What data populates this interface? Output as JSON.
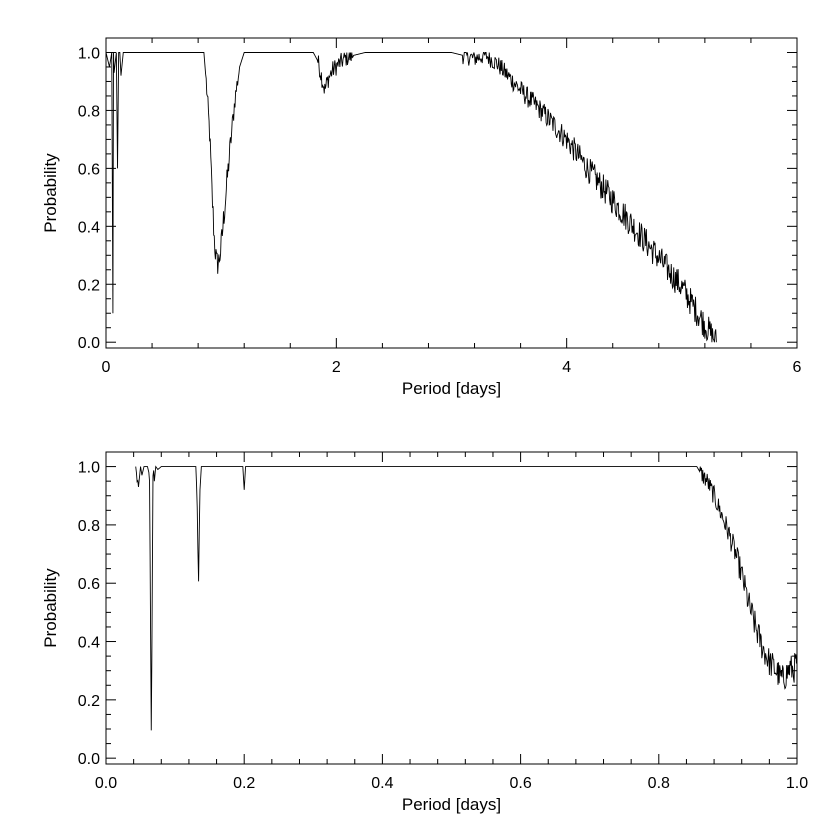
{
  "chart_data": [
    {
      "type": "line",
      "title": "",
      "xlabel": "Period [days]",
      "ylabel": "Probability",
      "xlim": [
        0,
        6
      ],
      "ylim": [
        -0.02,
        1.05
      ],
      "xticks": [
        0,
        2,
        4,
        6
      ],
      "xtick_labels": [
        "0",
        "2",
        "4",
        "6"
      ],
      "yticks": [
        0.0,
        0.2,
        0.4,
        0.6,
        0.8,
        1.0
      ],
      "ytick_labels": [
        "0.0",
        "0.2",
        "0.4",
        "0.6",
        "0.8",
        "1.0"
      ],
      "grid": false,
      "line_color": "#000000",
      "series": [
        {
          "x": [
            0.0,
            0.03,
            0.05,
            0.06,
            0.065,
            0.07,
            0.09,
            0.1,
            0.11,
            0.12,
            0.13,
            0.15,
            0.18,
            0.19,
            0.2,
            0.25,
            0.5,
            0.85,
            0.87,
            0.9,
            0.92,
            0.94,
            0.96,
            0.98,
            1.0,
            1.02,
            1.05,
            1.08,
            1.12,
            1.16,
            1.2,
            1.25,
            1.5,
            1.8,
            1.84,
            1.87,
            1.9,
            1.93,
            1.97,
            2.02,
            2.08,
            2.15,
            2.25,
            2.4,
            2.7,
            3.0,
            3.1,
            3.2,
            3.3,
            3.4,
            3.6,
            3.8,
            4.0,
            4.2,
            4.4,
            4.6,
            4.8,
            5.0,
            5.2,
            5.3
          ],
          "y": [
            1.0,
            0.95,
            1.0,
            0.1,
            1.0,
            0.93,
            1.0,
            0.6,
            1.0,
            1.0,
            0.92,
            1.0,
            1.0,
            1.0,
            1.0,
            1.0,
            1.0,
            1.0,
            0.9,
            0.72,
            0.52,
            0.36,
            0.27,
            0.28,
            0.33,
            0.42,
            0.55,
            0.68,
            0.84,
            0.95,
            1.0,
            1.0,
            1.0,
            1.0,
            0.97,
            0.92,
            0.87,
            0.91,
            0.94,
            0.96,
            0.98,
            0.99,
            1.0,
            1.0,
            1.0,
            1.0,
            0.99,
            0.98,
            0.99,
            0.96,
            0.87,
            0.79,
            0.7,
            0.59,
            0.49,
            0.39,
            0.29,
            0.19,
            0.06,
            0.0
          ]
        }
      ]
    },
    {
      "type": "line",
      "title": "",
      "xlabel": "Period [days]",
      "ylabel": "Probability",
      "xlim": [
        0.0,
        1.0
      ],
      "ylim": [
        -0.02,
        1.05
      ],
      "xticks": [
        0.0,
        0.2,
        0.4,
        0.6,
        0.8,
        1.0
      ],
      "xtick_labels": [
        "0.0",
        "0.2",
        "0.4",
        "0.6",
        "0.8",
        "1.0"
      ],
      "yticks": [
        0.0,
        0.2,
        0.4,
        0.6,
        0.8,
        1.0
      ],
      "ytick_labels": [
        "0.0",
        "0.2",
        "0.4",
        "0.6",
        "0.8",
        "1.0"
      ],
      "grid": false,
      "line_color": "#000000",
      "series": [
        {
          "x": [
            0.043,
            0.045,
            0.047,
            0.05,
            0.052,
            0.055,
            0.06,
            0.063,
            0.0655,
            0.068,
            0.07,
            0.072,
            0.075,
            0.08,
            0.1,
            0.13,
            0.132,
            0.134,
            0.136,
            0.138,
            0.15,
            0.198,
            0.2,
            0.202,
            0.25,
            0.4,
            0.6,
            0.8,
            0.855,
            0.86,
            0.87,
            0.88,
            0.89,
            0.9,
            0.91,
            0.92,
            0.93,
            0.94,
            0.95,
            0.96,
            0.97,
            0.975,
            0.98,
            0.985,
            0.99,
            0.995,
            1.0
          ],
          "y": [
            1.0,
            0.96,
            0.93,
            1.0,
            0.97,
            1.0,
            1.0,
            0.97,
            0.09,
            0.98,
            0.95,
            1.0,
            0.99,
            1.0,
            1.0,
            1.0,
            0.88,
            0.6,
            0.92,
            1.0,
            1.0,
            1.0,
            0.92,
            1.0,
            1.0,
            1.0,
            1.0,
            1.0,
            1.0,
            0.98,
            0.95,
            0.9,
            0.84,
            0.78,
            0.71,
            0.63,
            0.53,
            0.45,
            0.38,
            0.33,
            0.3,
            0.28,
            0.27,
            0.29,
            0.31,
            0.3,
            0.34
          ]
        }
      ]
    }
  ]
}
